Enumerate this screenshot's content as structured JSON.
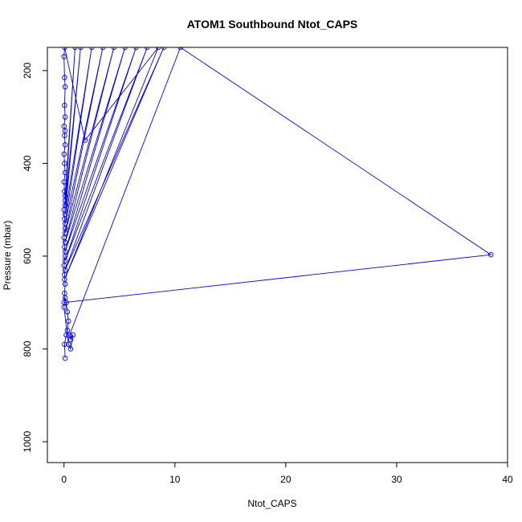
{
  "chart_data": {
    "type": "line",
    "title": "ATOM1 Southbound Ntot_CAPS",
    "xlabel": "Ntot_CAPS",
    "ylabel": "Pressure (mbar)",
    "xlim": [
      -1.5,
      40
    ],
    "ylim": [
      1045,
      150
    ],
    "y_reversed": true,
    "x_ticks": [
      0,
      10,
      20,
      30,
      40
    ],
    "y_ticks": [
      200,
      400,
      600,
      800,
      1000
    ],
    "grid": false,
    "color": "#0000ff",
    "marker": "open-circle",
    "series": [
      {
        "points": [
          [
            0.1,
            820
          ],
          [
            0.05,
            790
          ],
          [
            0.2,
            770
          ],
          [
            0.3,
            760
          ],
          [
            0.4,
            740
          ],
          [
            0.3,
            720
          ],
          [
            0.2,
            700
          ],
          [
            0.1,
            690
          ],
          [
            0.0,
            700
          ],
          [
            38.5,
            597
          ],
          [
            10.5,
            150
          ],
          [
            0.5,
            770
          ],
          [
            0.6,
            780
          ],
          [
            0.8,
            770
          ],
          [
            0.6,
            800
          ],
          [
            0.4,
            790
          ],
          [
            0.0,
            710
          ],
          [
            0.05,
            680
          ],
          [
            0.1,
            660
          ],
          [
            0.05,
            640
          ],
          [
            0.0,
            620
          ],
          [
            0.1,
            600
          ],
          [
            0.05,
            580
          ],
          [
            0.0,
            560
          ],
          [
            0.1,
            540
          ],
          [
            0.05,
            520
          ],
          [
            0.0,
            500
          ],
          [
            0.1,
            480
          ],
          [
            0.05,
            460
          ],
          [
            0.0,
            440
          ],
          [
            0.1,
            420
          ],
          [
            0.05,
            400
          ],
          [
            0.0,
            380
          ],
          [
            0.1,
            360
          ],
          [
            0.05,
            340
          ],
          [
            0.1,
            330
          ],
          [
            0.0,
            320
          ],
          [
            0.1,
            300
          ],
          [
            0.05,
            275
          ],
          [
            0.1,
            235
          ],
          [
            0.05,
            215
          ],
          [
            0.0,
            170
          ],
          [
            0.05,
            150
          ],
          [
            1.9,
            350
          ],
          [
            8.5,
            150
          ],
          [
            0.05,
            650
          ],
          [
            9.0,
            150
          ],
          [
            0.1,
            630
          ],
          [
            7.5,
            150
          ],
          [
            0.1,
            610
          ],
          [
            6.5,
            150
          ],
          [
            0.1,
            590
          ],
          [
            5.5,
            150
          ],
          [
            0.1,
            570
          ],
          [
            4.5,
            150
          ],
          [
            0.1,
            550
          ],
          [
            3.5,
            150
          ],
          [
            0.1,
            530
          ],
          [
            2.5,
            150
          ],
          [
            0.1,
            510
          ],
          [
            1.5,
            150
          ],
          [
            0.1,
            490
          ],
          [
            1.0,
            150
          ],
          [
            0.1,
            470
          ]
        ]
      }
    ]
  }
}
